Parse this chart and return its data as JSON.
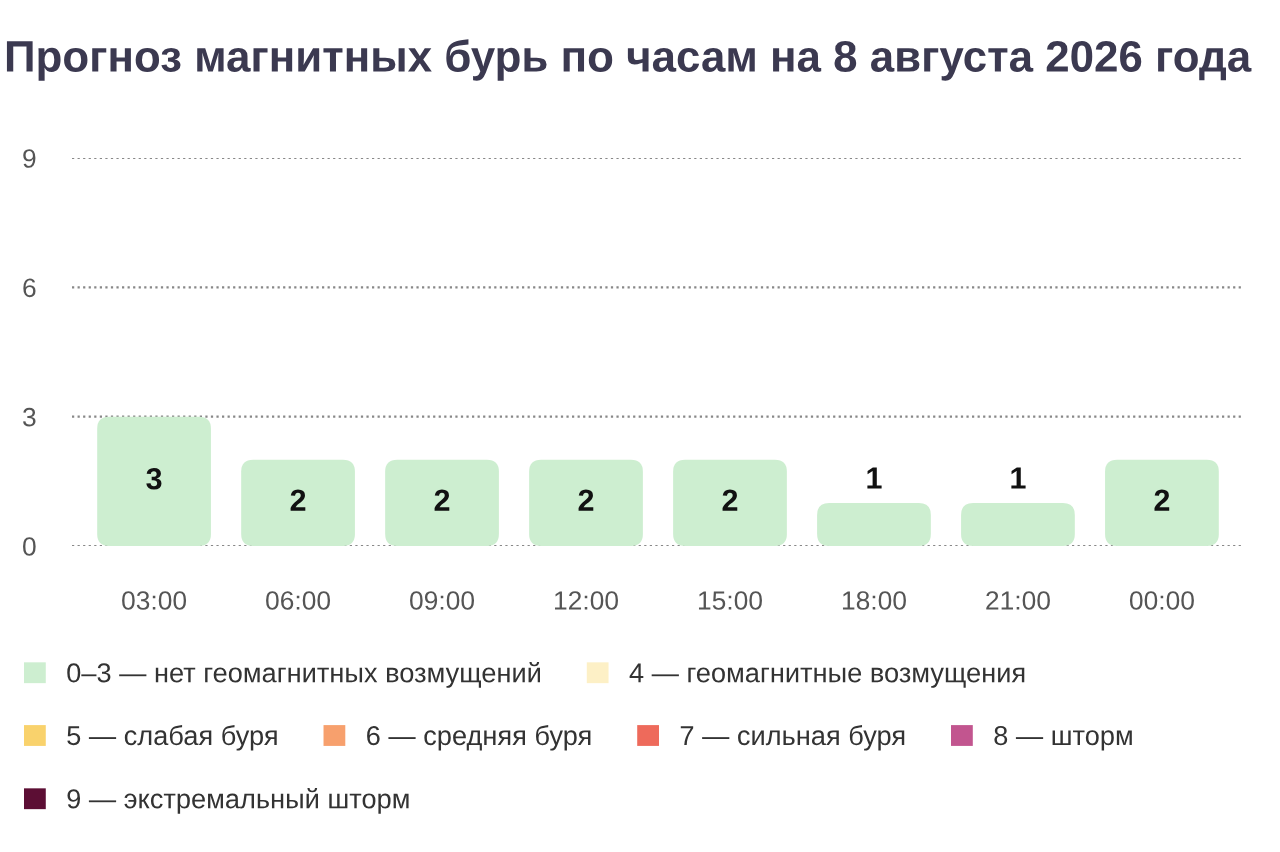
{
  "chart_data": {
    "type": "bar",
    "title": "Прогноз магнитных бурь по часам на 8 августа 2026 года",
    "categories": [
      "03:00",
      "06:00",
      "09:00",
      "12:00",
      "15:00",
      "18:00",
      "21:00",
      "00:00"
    ],
    "series": [
      {
        "name": "0–3 — нет геомагнитных возмущений",
        "color": "#cdeed0",
        "values": [
          3,
          2,
          2,
          2,
          2,
          1,
          1,
          2
        ]
      },
      {
        "name": "4 — геомагнитные возмущения",
        "color": "#fdf0c6",
        "values": [
          null,
          null,
          null,
          null,
          null,
          null,
          null,
          null
        ]
      },
      {
        "name": "5 — слабая буря",
        "color": "#f9d26c",
        "values": [
          null,
          null,
          null,
          null,
          null,
          null,
          null,
          null
        ]
      },
      {
        "name": "6 — средняя буря",
        "color": "#f7a06d",
        "values": [
          null,
          null,
          null,
          null,
          null,
          null,
          null,
          null
        ]
      },
      {
        "name": "7 — сильная буря",
        "color": "#ee6a5b",
        "values": [
          null,
          null,
          null,
          null,
          null,
          null,
          null,
          null
        ]
      },
      {
        "name": "8 — шторм",
        "color": "#c2558f",
        "values": [
          null,
          null,
          null,
          null,
          null,
          null,
          null,
          null
        ]
      },
      {
        "name": "9 — экстремальный шторм",
        "color": "#5c0e34",
        "values": [
          null,
          null,
          null,
          null,
          null,
          null,
          null,
          null
        ]
      }
    ],
    "stacked": true,
    "ylim": [
      0,
      9
    ],
    "yticks": [
      0,
      3,
      6,
      9
    ],
    "grid": "y",
    "legend": "bottom",
    "data_labels": true
  }
}
